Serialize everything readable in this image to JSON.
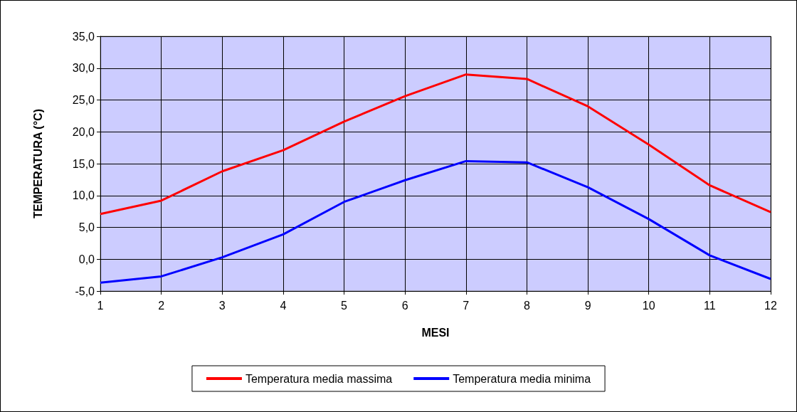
{
  "chart_data": {
    "type": "line",
    "xlabel": "MESI",
    "ylabel": "TEMPERATURA (°C)",
    "x": [
      1,
      2,
      3,
      4,
      5,
      6,
      7,
      8,
      9,
      10,
      11,
      12
    ],
    "series": [
      {
        "name": "Temperatura media massima",
        "color": "#ff0000",
        "values": [
          7.1,
          9.2,
          13.8,
          17.1,
          21.6,
          25.6,
          29.0,
          28.3,
          24.0,
          18.0,
          11.6,
          7.4
        ]
      },
      {
        "name": "Temperatura media minima",
        "color": "#0000ff",
        "values": [
          -3.7,
          -2.7,
          0.3,
          3.9,
          9.0,
          12.4,
          15.4,
          15.2,
          11.3,
          6.3,
          0.6,
          -3.1
        ]
      }
    ],
    "xlim": [
      1,
      12
    ],
    "xticks": [
      1,
      2,
      3,
      4,
      5,
      6,
      7,
      8,
      9,
      10,
      11,
      12
    ],
    "ylim": [
      -5,
      35
    ],
    "yticks": [
      {
        "value": -5,
        "label": "-5,0"
      },
      {
        "value": 0,
        "label": "0,0"
      },
      {
        "value": 5,
        "label": "5,0"
      },
      {
        "value": 10,
        "label": "10,0"
      },
      {
        "value": 15,
        "label": "15,0"
      },
      {
        "value": 20,
        "label": "20,0"
      },
      {
        "value": 25,
        "label": "25,0"
      },
      {
        "value": 30,
        "label": "30,0"
      },
      {
        "value": 35,
        "label": "35,0"
      }
    ],
    "grid": true,
    "legend": "bottom",
    "marker": "none",
    "line_style": "solid"
  }
}
